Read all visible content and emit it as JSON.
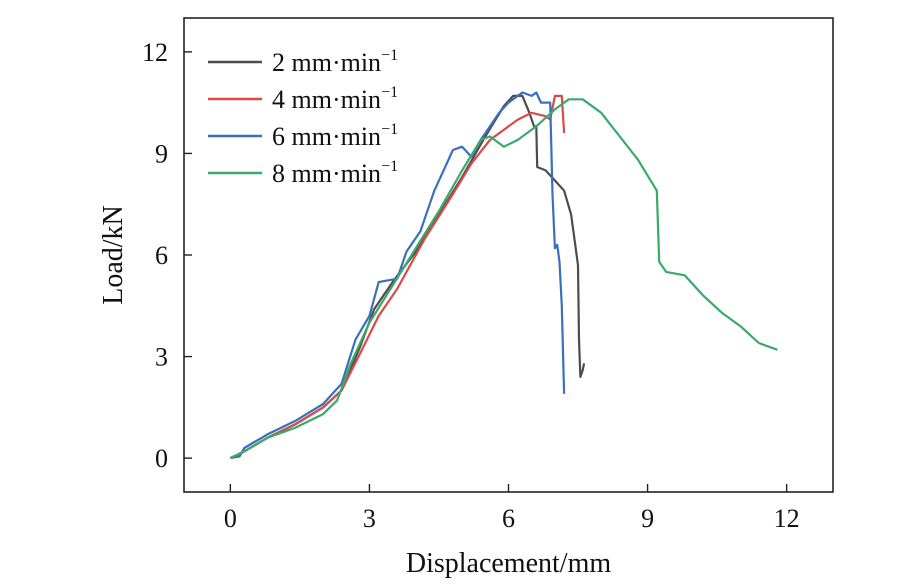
{
  "chart_data": {
    "type": "line",
    "xlabel": "Displacement/mm",
    "ylabel": "Load/kN",
    "xlim": [
      -1,
      13
    ],
    "ylim": [
      -1,
      13
    ],
    "xticks": [
      0,
      3,
      6,
      9,
      12
    ],
    "yticks": [
      0,
      3,
      6,
      9,
      12
    ],
    "xtick_labels": [
      "0",
      "3",
      "6",
      "9",
      "12"
    ],
    "ytick_labels": [
      "0",
      "3",
      "6",
      "9",
      "12"
    ],
    "grid": false,
    "legend_position": "top-left",
    "series": [
      {
        "name": "2 mm·min",
        "name_sup": "−1",
        "color": "#4d4d4d",
        "points": [
          [
            0,
            0
          ],
          [
            0.3,
            0.2
          ],
          [
            0.8,
            0.6
          ],
          [
            1.4,
            1.0
          ],
          [
            2.0,
            1.5
          ],
          [
            2.4,
            2.0
          ],
          [
            2.8,
            3.3
          ],
          [
            3.1,
            4.4
          ],
          [
            3.5,
            5.2
          ],
          [
            4.0,
            6.1
          ],
          [
            4.5,
            7.2
          ],
          [
            5.0,
            8.3
          ],
          [
            5.5,
            9.5
          ],
          [
            5.9,
            10.4
          ],
          [
            6.1,
            10.7
          ],
          [
            6.3,
            10.7
          ],
          [
            6.45,
            10.2
          ],
          [
            6.55,
            9.8
          ],
          [
            6.6,
            9.8
          ],
          [
            6.62,
            8.6
          ],
          [
            6.8,
            8.5
          ],
          [
            7.0,
            8.2
          ],
          [
            7.2,
            7.9
          ],
          [
            7.35,
            7.2
          ],
          [
            7.45,
            6.2
          ],
          [
            7.5,
            5.7
          ],
          [
            7.52,
            3.5
          ],
          [
            7.55,
            2.4
          ],
          [
            7.6,
            2.6
          ],
          [
            7.63,
            2.8
          ]
        ]
      },
      {
        "name": "4 mm·min",
        "name_sup": "−1",
        "color": "#d94a4a",
        "points": [
          [
            0,
            0
          ],
          [
            0.3,
            0.2
          ],
          [
            0.8,
            0.6
          ],
          [
            1.4,
            1.0
          ],
          [
            2.0,
            1.5
          ],
          [
            2.4,
            2.0
          ],
          [
            2.8,
            3.1
          ],
          [
            3.2,
            4.2
          ],
          [
            3.6,
            5.0
          ],
          [
            4.2,
            6.5
          ],
          [
            4.8,
            7.8
          ],
          [
            5.2,
            8.7
          ],
          [
            5.6,
            9.4
          ],
          [
            5.9,
            9.7
          ],
          [
            6.2,
            10.0
          ],
          [
            6.5,
            10.2
          ],
          [
            6.8,
            10.1
          ],
          [
            6.9,
            10.0
          ],
          [
            7.0,
            10.7
          ],
          [
            7.15,
            10.7
          ],
          [
            7.2,
            9.6
          ]
        ]
      },
      {
        "name": "6 mm·min",
        "name_sup": "−1",
        "color": "#3a6fbe",
        "points": [
          [
            0,
            0
          ],
          [
            0.2,
            0.05
          ],
          [
            0.3,
            0.3
          ],
          [
            0.8,
            0.7
          ],
          [
            1.4,
            1.1
          ],
          [
            2.0,
            1.6
          ],
          [
            2.4,
            2.2
          ],
          [
            2.7,
            3.5
          ],
          [
            3.0,
            4.2
          ],
          [
            3.2,
            5.2
          ],
          [
            3.6,
            5.3
          ],
          [
            3.8,
            6.1
          ],
          [
            4.1,
            6.7
          ],
          [
            4.4,
            7.9
          ],
          [
            4.6,
            8.5
          ],
          [
            4.8,
            9.1
          ],
          [
            5.0,
            9.2
          ],
          [
            5.2,
            8.9
          ],
          [
            5.4,
            9.4
          ],
          [
            5.6,
            9.8
          ],
          [
            5.8,
            10.2
          ],
          [
            6.0,
            10.5
          ],
          [
            6.3,
            10.8
          ],
          [
            6.5,
            10.7
          ],
          [
            6.6,
            10.8
          ],
          [
            6.7,
            10.5
          ],
          [
            6.9,
            10.5
          ],
          [
            6.95,
            7.8
          ],
          [
            7.0,
            6.2
          ],
          [
            7.05,
            6.3
          ],
          [
            7.1,
            5.8
          ],
          [
            7.15,
            4.5
          ],
          [
            7.2,
            1.9
          ]
        ]
      },
      {
        "name": "8 mm·min",
        "name_sup": "−1",
        "color": "#3aaa6a",
        "points": [
          [
            0,
            0
          ],
          [
            0.3,
            0.2
          ],
          [
            0.8,
            0.6
          ],
          [
            1.4,
            0.9
          ],
          [
            2.0,
            1.3
          ],
          [
            2.3,
            1.7
          ],
          [
            2.6,
            2.8
          ],
          [
            3.0,
            4.0
          ],
          [
            3.5,
            5.1
          ],
          [
            4.0,
            6.2
          ],
          [
            4.5,
            7.3
          ],
          [
            5.0,
            8.5
          ],
          [
            5.4,
            9.4
          ],
          [
            5.6,
            9.5
          ],
          [
            5.9,
            9.2
          ],
          [
            6.2,
            9.4
          ],
          [
            6.6,
            9.8
          ],
          [
            7.0,
            10.3
          ],
          [
            7.3,
            10.6
          ],
          [
            7.6,
            10.6
          ],
          [
            8.0,
            10.2
          ],
          [
            8.4,
            9.5
          ],
          [
            8.8,
            8.8
          ],
          [
            9.2,
            7.9
          ],
          [
            9.25,
            5.8
          ],
          [
            9.4,
            5.5
          ],
          [
            9.8,
            5.4
          ],
          [
            10.2,
            4.8
          ],
          [
            10.6,
            4.3
          ],
          [
            11.0,
            3.9
          ],
          [
            11.4,
            3.4
          ],
          [
            11.8,
            3.2
          ]
        ]
      }
    ]
  }
}
